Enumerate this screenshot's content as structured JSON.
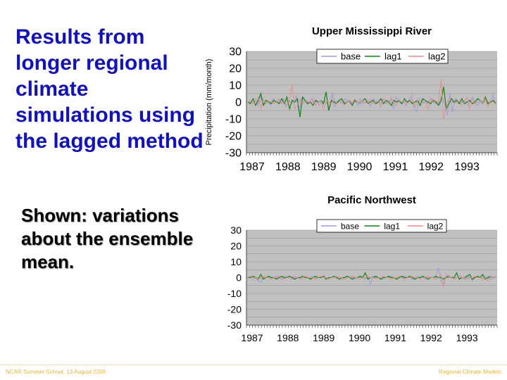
{
  "slide": {
    "title": "Results from longer regional climate simulations using the lagged method",
    "subtitle": "Shown: variations about the ensemble mean.",
    "footer_left": "NCAR Summer School, 13 August 2008",
    "footer_right": "Regional Climate Models"
  },
  "colors": {
    "title": "#1010c8",
    "plot_bg": "#c0c0c0",
    "base": "#9a9ae8",
    "lag1": "#108a10",
    "lag2": "#f08888"
  },
  "chart_data": [
    {
      "type": "line",
      "title": "Upper Mississippi River",
      "ylabel": "Precipitation (mm/month)",
      "xlabel": "",
      "ylim": [
        -30,
        30
      ],
      "yticks": [
        30,
        20,
        10,
        0,
        -10,
        -20,
        -30
      ],
      "xlim": [
        1987,
        1994
      ],
      "xticks": [
        "1987",
        "1988",
        "1989",
        "1990",
        "1991",
        "1992",
        "1993"
      ],
      "grid": true,
      "legend": "top",
      "series": [
        {
          "name": "base",
          "values": [
            0,
            1,
            -1,
            2,
            -2,
            3,
            -1,
            1,
            0,
            -2,
            2,
            0,
            1,
            -1,
            2,
            -3,
            1,
            0,
            -1,
            4,
            -6,
            2,
            1,
            -1,
            0,
            2,
            -1,
            1,
            -2,
            0,
            1,
            -1,
            -4,
            5,
            -3,
            1,
            0,
            -1,
            2,
            1,
            -1,
            0,
            1,
            -2,
            2,
            -1,
            0,
            1,
            -3,
            2,
            1,
            0,
            -1,
            2,
            -1,
            0,
            2,
            -4,
            3,
            1,
            -1,
            0,
            -2,
            1,
            4,
            -3,
            -6,
            2,
            1,
            0,
            -1,
            1,
            2,
            -1,
            0,
            -2,
            3,
            -1,
            -8,
            5,
            -6,
            2,
            1,
            -1,
            0,
            1,
            -2,
            1,
            3,
            -1,
            -2,
            1,
            0,
            2,
            -1,
            1,
            4,
            -2
          ]
        },
        {
          "name": "lag1",
          "values": [
            0,
            -1,
            2,
            -2,
            1,
            5,
            -2,
            1,
            0,
            -1,
            1,
            0,
            -1,
            2,
            -1,
            3,
            -4,
            1,
            0,
            2,
            -9,
            3,
            1,
            -1,
            0,
            -2,
            1,
            0,
            1,
            -1,
            6,
            -5,
            1,
            0,
            -1,
            1,
            2,
            -1,
            0,
            1,
            -2,
            1,
            0,
            -1,
            1,
            2,
            -1,
            0,
            1,
            -1,
            0,
            2,
            -1,
            1,
            0,
            -2,
            1,
            0,
            1,
            -1,
            2,
            0,
            1,
            -1,
            0,
            1,
            -2,
            2,
            1,
            0,
            -1,
            1,
            0,
            -2,
            1,
            9,
            -4,
            -1,
            2,
            0,
            1,
            -1,
            2,
            -1,
            0,
            1,
            -1,
            0,
            2,
            1,
            -1,
            3,
            -1,
            0,
            1,
            -1
          ]
        },
        {
          "name": "lag2",
          "values": [
            0,
            1,
            0,
            -1,
            3,
            -4,
            2,
            -1,
            0,
            1,
            -1,
            0,
            2,
            -1,
            0,
            -2,
            1,
            10,
            -4,
            -2,
            2,
            -1,
            0,
            1,
            -1,
            2,
            -2,
            0,
            1,
            -4,
            1,
            0,
            -1,
            2,
            -1,
            0,
            1,
            -2,
            0,
            1,
            -1,
            2,
            0,
            -1,
            1,
            0,
            -1,
            2,
            -1,
            0,
            1,
            -3,
            2,
            0,
            -1,
            3,
            -1,
            -2,
            1,
            0,
            1,
            -1,
            0,
            2,
            -3,
            1,
            0,
            -1,
            1,
            -4,
            2,
            0,
            1,
            -1,
            13,
            -10,
            -3,
            2,
            1,
            -1,
            0,
            1,
            -2,
            0,
            3,
            -4,
            2,
            -1,
            0,
            1,
            -1,
            2,
            -3,
            1,
            0,
            -1
          ]
        }
      ]
    },
    {
      "type": "line",
      "title": "Pacific Northwest",
      "ylabel": "",
      "xlabel": "",
      "ylim": [
        -30,
        30
      ],
      "yticks": [
        30,
        20,
        10,
        0,
        -10,
        -20,
        -30
      ],
      "xlim": [
        1987,
        1994
      ],
      "xticks": [
        "1987",
        "1988",
        "1989",
        "1990",
        "1991",
        "1992",
        "1993"
      ],
      "grid": true,
      "legend": "top",
      "series": [
        {
          "name": "base",
          "values": [
            0,
            1,
            -1,
            0,
            -2,
            -3,
            1,
            0,
            1,
            -1,
            0,
            1,
            0,
            -1,
            0,
            1,
            0,
            -1,
            1,
            0,
            0,
            -1,
            1,
            0,
            0,
            1,
            -1,
            0,
            0,
            1,
            0,
            -1,
            0,
            0,
            1,
            0,
            -1,
            0,
            0,
            1,
            0,
            -1,
            0,
            1,
            0,
            -1,
            0,
            -4,
            1,
            0,
            0,
            -1,
            1,
            0,
            0,
            1,
            0,
            -1,
            0,
            0,
            1,
            0,
            0,
            -1,
            0,
            1,
            0,
            0,
            -1,
            1,
            0,
            0,
            1,
            6,
            -2,
            -4,
            1,
            0,
            0,
            -1,
            0,
            1,
            0,
            -1,
            0,
            1,
            -2,
            0,
            1,
            0,
            -1,
            0,
            1,
            -1,
            0,
            1
          ]
        },
        {
          "name": "lag1",
          "values": [
            0,
            0,
            1,
            0,
            -1,
            2,
            -1,
            0,
            1,
            0,
            0,
            -1,
            0,
            1,
            0,
            0,
            1,
            0,
            -1,
            0,
            0,
            1,
            0,
            0,
            -1,
            0,
            1,
            0,
            0,
            1,
            -1,
            0,
            0,
            1,
            0,
            -1,
            0,
            0,
            1,
            0,
            -1,
            0,
            0,
            1,
            0,
            3,
            -1,
            0,
            0,
            1,
            0,
            -1,
            0,
            0,
            1,
            0,
            0,
            -1,
            0,
            1,
            0,
            0,
            1,
            0,
            -1,
            0,
            0,
            1,
            0,
            -1,
            0,
            0,
            1,
            0,
            0,
            -1,
            0,
            1,
            0,
            0,
            3,
            -1,
            0,
            0,
            1,
            2,
            -1,
            0,
            1,
            0,
            2,
            -1,
            0,
            1,
            0,
            0
          ]
        },
        {
          "name": "lag2",
          "values": [
            0,
            1,
            0,
            0,
            -1,
            0,
            1,
            0,
            0,
            -1,
            0,
            0,
            1,
            0,
            -1,
            0,
            0,
            1,
            0,
            0,
            -1,
            0,
            1,
            0,
            0,
            0,
            -1,
            0,
            1,
            0,
            0,
            -1,
            0,
            0,
            1,
            0,
            0,
            -1,
            0,
            0,
            1,
            0,
            0,
            -1,
            0,
            0,
            1,
            0,
            0,
            -1,
            0,
            0,
            1,
            0,
            0,
            -1,
            0,
            0,
            1,
            0,
            -1,
            0,
            0,
            1,
            0,
            0,
            -1,
            0,
            0,
            1,
            0,
            0,
            -1,
            0,
            2,
            -6,
            2,
            1,
            0,
            -1,
            0,
            1,
            0,
            0,
            -1,
            0,
            0,
            1,
            0,
            0,
            -1,
            0,
            -2,
            1,
            0,
            0
          ]
        }
      ]
    }
  ]
}
